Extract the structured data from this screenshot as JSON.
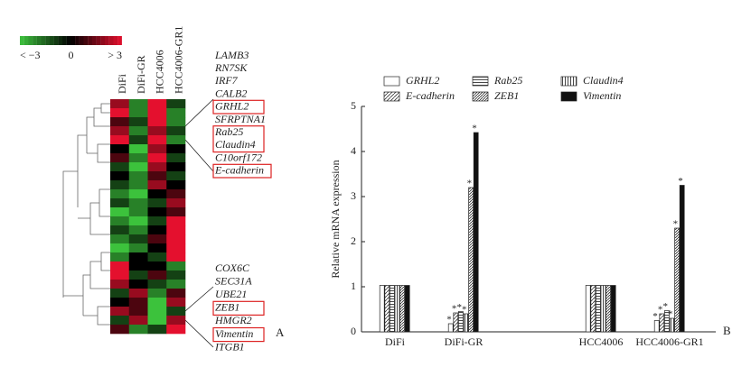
{
  "chart_data": [
    {
      "type": "heatmap",
      "columns": [
        "DiFi",
        "DiFi-GR",
        "HCC4006",
        "HCC4006-GR1"
      ],
      "colorbar_labels": [
        "< −3",
        "0",
        "> 3"
      ],
      "clim": [
        -3,
        3
      ],
      "colors": [
        "#3cc23c",
        "#000000",
        "#e4102e"
      ],
      "values": [
        [
          2,
          -2,
          3,
          -1
        ],
        [
          3,
          -2,
          3,
          -2
        ],
        [
          1,
          -1,
          3,
          -2
        ],
        [
          2,
          -2,
          2,
          -1
        ],
        [
          3,
          -1,
          3,
          -2
        ],
        [
          0,
          -3,
          2,
          0
        ],
        [
          1,
          -2,
          3,
          -1
        ],
        [
          -1,
          -3,
          2,
          0
        ],
        [
          0,
          -2,
          1,
          -1
        ],
        [
          -1,
          -2,
          2,
          0
        ],
        [
          -2,
          -3,
          0,
          1
        ],
        [
          -1,
          -2,
          -1,
          2
        ],
        [
          -3,
          -2,
          0,
          1
        ],
        [
          -2,
          -3,
          -1,
          3
        ],
        [
          -1,
          -2,
          0,
          3
        ],
        [
          -2,
          -1,
          1,
          3
        ],
        [
          -3,
          -2,
          0,
          3
        ],
        [
          -2,
          0,
          -1,
          3
        ],
        [
          3,
          0,
          0,
          -2
        ],
        [
          3,
          -1,
          1,
          -1
        ],
        [
          2,
          0,
          -1,
          -2
        ],
        [
          -1,
          2,
          -2,
          1
        ],
        [
          0,
          1,
          -3,
          2
        ],
        [
          2,
          1,
          -3,
          -1
        ],
        [
          -1,
          2,
          -3,
          2
        ],
        [
          1,
          -2,
          -1,
          3
        ]
      ],
      "genes_top": [
        "LAMB3",
        "RN7SK",
        "IRF7",
        "CALB2",
        "GRHL2",
        "SFRPTNA1",
        "Rab25",
        "Claudin4",
        "C10orf172",
        "E-cadherin"
      ],
      "genes_bottom": [
        "COX6C",
        "SEC31A",
        "UBE21",
        "ZEB1",
        "HMGR2",
        "Vimentin",
        "ITGB1"
      ],
      "panel_label": "A"
    },
    {
      "type": "bar",
      "categories": [
        "DiFi",
        "DiFi-GR",
        "HCC4006",
        "HCC4006-GR1"
      ],
      "ylabel": "Relative mRNA expression",
      "ylim": [
        0,
        5
      ],
      "yticks": [
        0,
        1,
        2,
        3,
        4,
        5
      ],
      "annotation": "*",
      "annotated_categories": [
        "DiFi-GR",
        "HCC4006-GR1"
      ],
      "panel_label": "B",
      "series": [
        {
          "name": "GRHL2",
          "color": "#ffffff",
          "pattern": "none",
          "values": [
            1.03,
            0.18,
            1.03,
            0.25
          ]
        },
        {
          "name": "E-cadherin",
          "color": "#ffffff",
          "pattern": "diagonal",
          "values": [
            1.03,
            0.42,
            1.03,
            0.4
          ]
        },
        {
          "name": "Rab25",
          "color": "#ffffff",
          "pattern": "horizontal",
          "values": [
            1.03,
            0.45,
            1.03,
            0.47
          ]
        },
        {
          "name": "Claudin4",
          "color": "#ffffff",
          "pattern": "vertical",
          "values": [
            1.03,
            0.4,
            1.03,
            0.3
          ]
        },
        {
          "name": "ZEB1",
          "color": "#ffffff",
          "pattern": "diagonal-dense",
          "values": [
            1.03,
            3.2,
            1.03,
            2.3
          ]
        },
        {
          "name": "Vimentin",
          "color": "#111111",
          "pattern": "solid",
          "values": [
            1.03,
            4.42,
            1.03,
            3.25
          ]
        }
      ]
    }
  ]
}
